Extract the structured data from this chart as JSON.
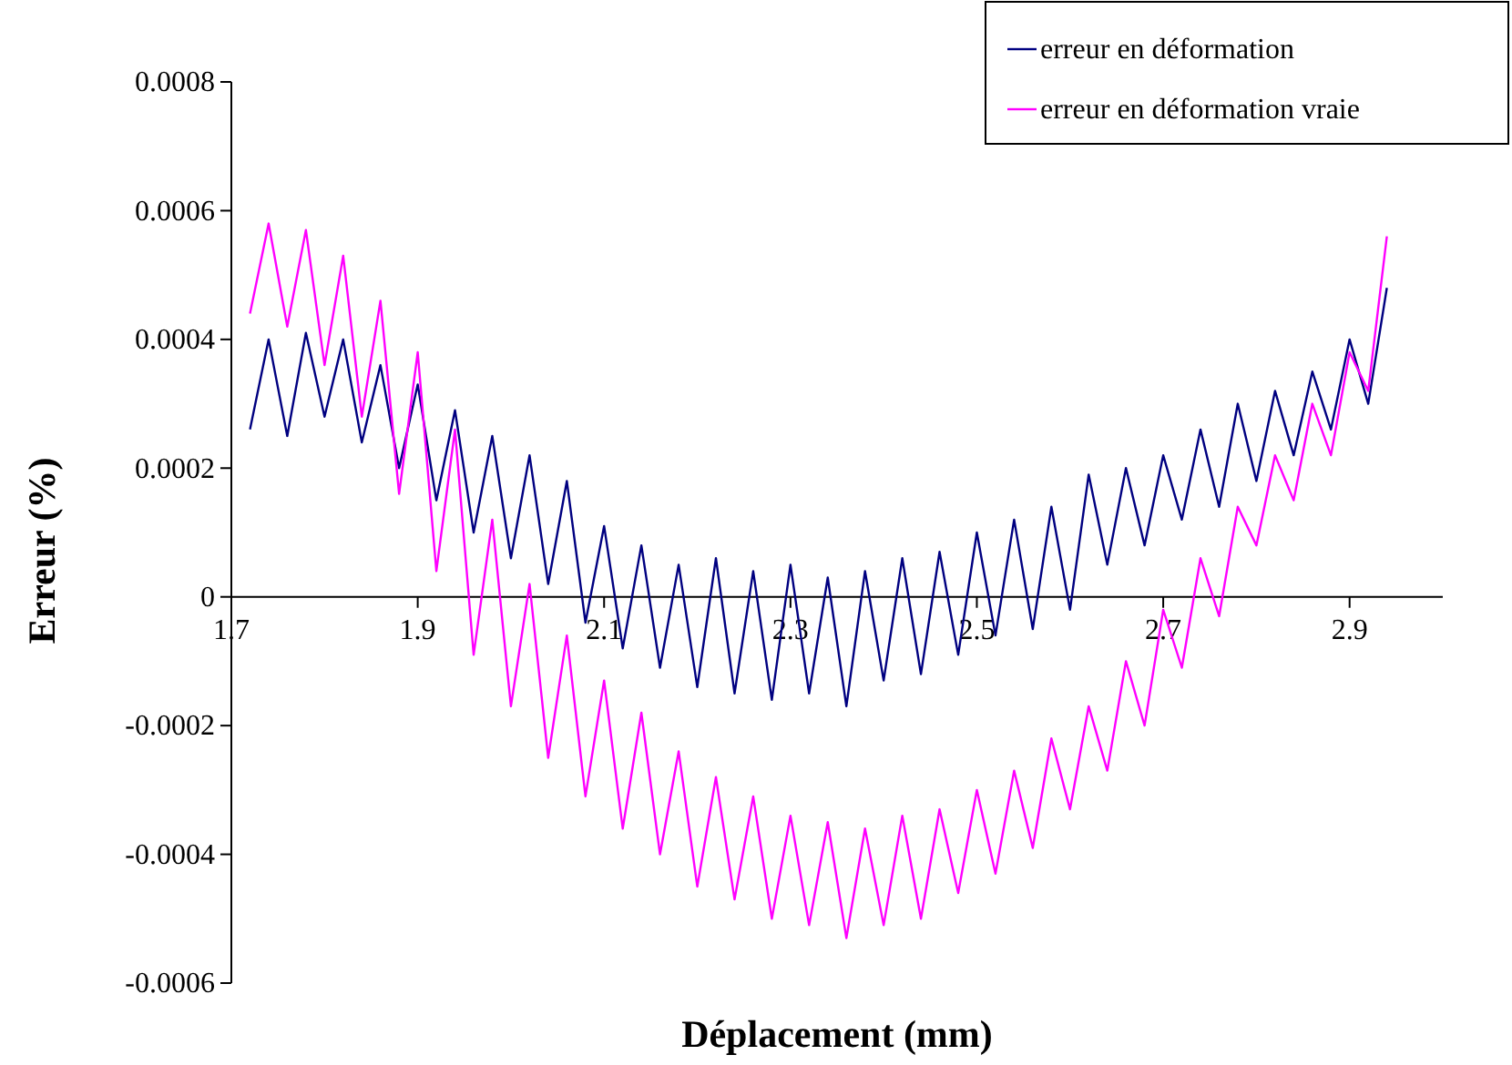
{
  "chart_data": {
    "type": "line",
    "xlabel": "Déplacement (mm)",
    "ylabel": "Erreur (%)",
    "xlim": [
      1.7,
      3.0
    ],
    "xticks": [
      1.7,
      1.9,
      2.1,
      2.3,
      2.5,
      2.7,
      2.9
    ],
    "ylim": [
      -0.0006,
      0.0008
    ],
    "yticks": [
      -0.0006,
      -0.0004,
      -0.0002,
      0,
      0.0002,
      0.0004,
      0.0006,
      0.0008
    ],
    "grid": false,
    "legend": "top right",
    "marker": "none",
    "line_style": "solid",
    "x": [
      1.72,
      1.74,
      1.76,
      1.78,
      1.8,
      1.82,
      1.84,
      1.86,
      1.88,
      1.9,
      1.92,
      1.94,
      1.96,
      1.98,
      2.0,
      2.02,
      2.04,
      2.06,
      2.08,
      2.1,
      2.12,
      2.14,
      2.16,
      2.18,
      2.2,
      2.22,
      2.24,
      2.26,
      2.28,
      2.3,
      2.32,
      2.34,
      2.36,
      2.38,
      2.4,
      2.42,
      2.44,
      2.46,
      2.48,
      2.5,
      2.52,
      2.54,
      2.56,
      2.58,
      2.6,
      2.62,
      2.64,
      2.66,
      2.68,
      2.7,
      2.72,
      2.74,
      2.76,
      2.78,
      2.8,
      2.82,
      2.84,
      2.86,
      2.88,
      2.9,
      2.92,
      2.94
    ],
    "series": [
      {
        "name": "erreur en déformation",
        "color": "#000080",
        "values": [
          0.00026,
          0.0004,
          0.00025,
          0.00041,
          0.00028,
          0.0004,
          0.00024,
          0.00036,
          0.0002,
          0.00033,
          0.00015,
          0.00029,
          0.0001,
          0.00025,
          6e-05,
          0.00022,
          2e-05,
          0.00018,
          -4e-05,
          0.00011,
          -8e-05,
          8e-05,
          -0.00011,
          5e-05,
          -0.00014,
          6e-05,
          -0.00015,
          4e-05,
          -0.00016,
          5e-05,
          -0.00015,
          3e-05,
          -0.00017,
          4e-05,
          -0.00013,
          6e-05,
          -0.00012,
          7e-05,
          -9e-05,
          0.0001,
          -6e-05,
          0.00012,
          -5e-05,
          0.00014,
          -2e-05,
          0.00019,
          5e-05,
          0.0002,
          8e-05,
          0.00022,
          0.00012,
          0.00026,
          0.00014,
          0.0003,
          0.00018,
          0.00032,
          0.00022,
          0.00035,
          0.00026,
          0.0004,
          0.0003,
          0.00048
        ]
      },
      {
        "name": "erreur en déformation vraie",
        "color": "#ff00ff",
        "values": [
          0.00044,
          0.00058,
          0.00042,
          0.00057,
          0.00036,
          0.00053,
          0.00028,
          0.00046,
          0.00016,
          0.00038,
          4e-05,
          0.00026,
          -9e-05,
          0.00012,
          -0.00017,
          2e-05,
          -0.00025,
          -6e-05,
          -0.00031,
          -0.00013,
          -0.00036,
          -0.00018,
          -0.0004,
          -0.00024,
          -0.00045,
          -0.00028,
          -0.00047,
          -0.00031,
          -0.0005,
          -0.00034,
          -0.00051,
          -0.00035,
          -0.00053,
          -0.00036,
          -0.00051,
          -0.00034,
          -0.0005,
          -0.00033,
          -0.00046,
          -0.0003,
          -0.00043,
          -0.00027,
          -0.00039,
          -0.00022,
          -0.00033,
          -0.00017,
          -0.00027,
          -0.0001,
          -0.0002,
          -2e-05,
          -0.00011,
          6e-05,
          -3e-05,
          0.00014,
          8e-05,
          0.00022,
          0.00015,
          0.0003,
          0.00022,
          0.00038,
          0.00032,
          0.00056
        ]
      }
    ]
  }
}
